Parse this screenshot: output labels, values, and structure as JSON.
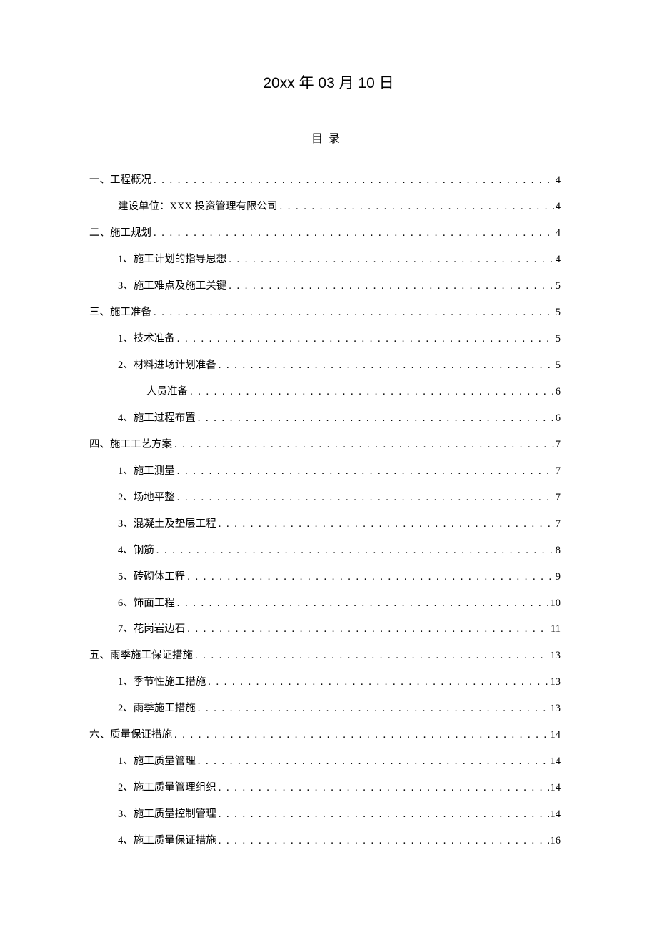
{
  "date": "20xx 年 03 月 10 日",
  "tocTitle": "目录",
  "entries": [
    {
      "level": 0,
      "label": "一、工程概况",
      "page": "4"
    },
    {
      "level": 1,
      "label": "建设单位：XXX 投资管理有限公司",
      "page": "4"
    },
    {
      "level": 0,
      "label": "二、施工规划",
      "page": "4"
    },
    {
      "level": 1,
      "label": "1、施工计划的指导思想",
      "page": "4"
    },
    {
      "level": 1,
      "label": "3、施工难点及施工关键",
      "page": "5"
    },
    {
      "level": 0,
      "label": "三、施工准备",
      "page": "5"
    },
    {
      "level": 1,
      "label": "1、技术准备",
      "page": "5"
    },
    {
      "level": 1,
      "label": "2、材料进场计划准备",
      "page": "5"
    },
    {
      "level": 2,
      "label": "人员准备",
      "page": "6"
    },
    {
      "level": 1,
      "label": "4、施工过程布置",
      "page": "6"
    },
    {
      "level": 0,
      "label": "四、施工工艺方案",
      "page": "7"
    },
    {
      "level": 1,
      "label": "1、施工测量",
      "page": "7"
    },
    {
      "level": 1,
      "label": "2、场地平整",
      "page": "7"
    },
    {
      "level": 1,
      "label": "3、混凝土及垫层工程",
      "page": "7"
    },
    {
      "level": 1,
      "label": "4、钢筋",
      "page": "8"
    },
    {
      "level": 1,
      "label": "5、砖砌体工程",
      "page": "9"
    },
    {
      "level": 1,
      "label": "6、饰面工程",
      "page": "10"
    },
    {
      "level": 1,
      "label": "7、花岗岩边石",
      "page": "11"
    },
    {
      "level": 0,
      "label": "五、雨季施工保证措施",
      "page": "13"
    },
    {
      "level": 1,
      "label": "1、季节性施工措施",
      "page": "13"
    },
    {
      "level": 1,
      "label": "2、雨季施工措施",
      "page": "13"
    },
    {
      "level": 0,
      "label": "六、质量保证措施",
      "page": "14"
    },
    {
      "level": 1,
      "label": "1、施工质量管理",
      "page": "14"
    },
    {
      "level": 1,
      "label": "2、施工质量管理组织",
      "page": "14"
    },
    {
      "level": 1,
      "label": "3、施工质量控制管理",
      "page": "14"
    },
    {
      "level": 1,
      "label": "4、施工质量保证措施",
      "page": "16"
    }
  ]
}
